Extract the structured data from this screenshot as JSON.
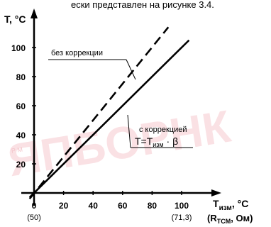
{
  "caption_fragment": "ески представлен на рисунке 3.4.",
  "watermark": {
    "text": "ЯПБОРНК",
    "subtext": "Р  М"
  },
  "chart_data": {
    "type": "line",
    "x": [
      0,
      20,
      40,
      60,
      80,
      100
    ],
    "xlim": [
      -4,
      110
    ],
    "ylim": [
      -6,
      118
    ],
    "x_ticks": [
      "0",
      "20",
      "40",
      "60",
      "80",
      "100"
    ],
    "x_sublabels": [
      {
        "x": 0,
        "text": "(50)"
      },
      {
        "x": 100,
        "text": "(71,3)"
      }
    ],
    "y_ticks": [
      "20",
      "40",
      "60",
      "80",
      "100"
    ],
    "ylabel": "T, °C",
    "xlabel_main": "T",
    "xlabel_sub": "изм",
    "xlabel_unit": ", °C",
    "xlabel2_open": "(R",
    "xlabel2_sub": "TCM",
    "xlabel2_close": ", Ом)",
    "grid": false,
    "series": [
      {
        "name": "без коррекции",
        "style": "dashed",
        "color": "#000000",
        "points": [
          [
            -3,
            -4
          ],
          [
            91,
            114
          ]
        ]
      },
      {
        "name": "с коррекцией",
        "style": "solid",
        "color": "#000000",
        "points": [
          [
            -3,
            -3
          ],
          [
            105,
            105
          ]
        ]
      }
    ],
    "annotations": [
      {
        "text": "без коррекции",
        "target_series": 0
      },
      {
        "text": "с коррекцией",
        "target_series": 1
      },
      {
        "text_main": "T=T",
        "text_sub": "изм",
        "text_tail": "· β"
      }
    ]
  }
}
